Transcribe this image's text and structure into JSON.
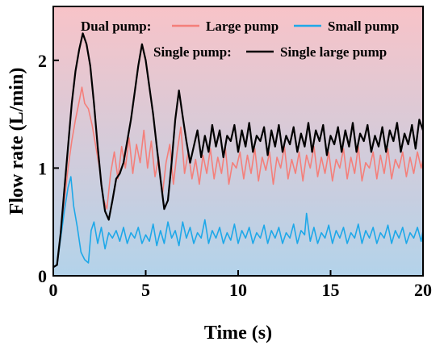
{
  "chart_data": {
    "type": "line",
    "title": "",
    "xlabel": "Time (s)",
    "ylabel": "Flow rate (L/min)",
    "xlim": [
      0,
      20
    ],
    "ylim": [
      0,
      2.5
    ],
    "xticks": [
      0,
      5,
      10,
      15,
      20
    ],
    "yticks": [
      0,
      1,
      2
    ],
    "grid": false,
    "legend_position": "top",
    "background": {
      "top_color": "#f8c3c8",
      "bottom_color": "#b3d3ea"
    },
    "legend": {
      "group1_label": "Dual pump:",
      "group2_label": "Single pump:"
    },
    "series": [
      {
        "name": "Large pump",
        "group": "Dual pump:",
        "color": "#f47f7a",
        "points": [
          [
            0,
            0.08
          ],
          [
            0.2,
            0.1
          ],
          [
            0.4,
            0.35
          ],
          [
            0.6,
            0.7
          ],
          [
            0.8,
            1.0
          ],
          [
            1.0,
            1.25
          ],
          [
            1.2,
            1.45
          ],
          [
            1.4,
            1.62
          ],
          [
            1.55,
            1.75
          ],
          [
            1.7,
            1.6
          ],
          [
            1.9,
            1.55
          ],
          [
            2.1,
            1.4
          ],
          [
            2.3,
            1.2
          ],
          [
            2.5,
            1.0
          ],
          [
            2.7,
            0.72
          ],
          [
            2.9,
            0.62
          ],
          [
            3.1,
            0.95
          ],
          [
            3.3,
            1.15
          ],
          [
            3.5,
            0.9
          ],
          [
            3.7,
            1.2
          ],
          [
            3.9,
            1.0
          ],
          [
            4.1,
            1.28
          ],
          [
            4.3,
            0.95
          ],
          [
            4.5,
            1.22
          ],
          [
            4.7,
            1.05
          ],
          [
            4.9,
            1.35
          ],
          [
            5.1,
            1.0
          ],
          [
            5.3,
            1.25
          ],
          [
            5.5,
            0.92
          ],
          [
            5.7,
            1.1
          ],
          [
            5.9,
            0.75
          ],
          [
            6.1,
            1.05
          ],
          [
            6.3,
            1.22
          ],
          [
            6.5,
            0.85
          ],
          [
            6.7,
            1.15
          ],
          [
            6.9,
            1.38
          ],
          [
            7.1,
            0.95
          ],
          [
            7.3,
            1.15
          ],
          [
            7.5,
            0.9
          ],
          [
            7.7,
            1.08
          ],
          [
            7.9,
            0.85
          ],
          [
            8.1,
            1.12
          ],
          [
            8.3,
            0.95
          ],
          [
            8.5,
            1.18
          ],
          [
            8.7,
            0.9
          ],
          [
            8.9,
            1.1
          ],
          [
            9.1,
            0.95
          ],
          [
            9.3,
            1.2
          ],
          [
            9.5,
            0.85
          ],
          [
            9.7,
            1.05
          ],
          [
            9.9,
            1.0
          ],
          [
            10.1,
            1.15
          ],
          [
            10.3,
            0.9
          ],
          [
            10.5,
            1.12
          ],
          [
            10.7,
            0.95
          ],
          [
            10.9,
            1.18
          ],
          [
            11.1,
            0.88
          ],
          [
            11.3,
            1.1
          ],
          [
            11.5,
            0.98
          ],
          [
            11.7,
            1.15
          ],
          [
            11.9,
            0.85
          ],
          [
            12.1,
            1.1
          ],
          [
            12.3,
            1.0
          ],
          [
            12.5,
            1.2
          ],
          [
            12.7,
            0.9
          ],
          [
            12.9,
            1.08
          ],
          [
            13.1,
            0.95
          ],
          [
            13.3,
            1.15
          ],
          [
            13.5,
            0.88
          ],
          [
            13.7,
            1.12
          ],
          [
            13.9,
            1.0
          ],
          [
            14.1,
            1.2
          ],
          [
            14.3,
            0.92
          ],
          [
            14.5,
            1.1
          ],
          [
            14.7,
            0.95
          ],
          [
            14.9,
            1.15
          ],
          [
            15.1,
            0.88
          ],
          [
            15.3,
            1.08
          ],
          [
            15.5,
            1.0
          ],
          [
            15.7,
            1.18
          ],
          [
            15.9,
            0.9
          ],
          [
            16.1,
            1.1
          ],
          [
            16.3,
            0.95
          ],
          [
            16.5,
            1.2
          ],
          [
            16.7,
            0.88
          ],
          [
            16.9,
            1.05
          ],
          [
            17.1,
            1.0
          ],
          [
            17.3,
            1.15
          ],
          [
            17.5,
            0.9
          ],
          [
            17.7,
            1.12
          ],
          [
            17.9,
            0.95
          ],
          [
            18.1,
            1.18
          ],
          [
            18.3,
            0.9
          ],
          [
            18.5,
            1.08
          ],
          [
            18.7,
            1.0
          ],
          [
            18.9,
            1.15
          ],
          [
            19.1,
            0.92
          ],
          [
            19.3,
            1.1
          ],
          [
            19.5,
            0.95
          ],
          [
            19.7,
            1.15
          ],
          [
            19.9,
            1.0
          ],
          [
            20.0,
            1.08
          ]
        ]
      },
      {
        "name": "Small pump",
        "group": "Dual pump:",
        "color": "#1ea8e8",
        "points": [
          [
            0,
            0.08
          ],
          [
            0.2,
            0.1
          ],
          [
            0.4,
            0.35
          ],
          [
            0.6,
            0.6
          ],
          [
            0.8,
            0.82
          ],
          [
            0.95,
            0.92
          ],
          [
            1.1,
            0.65
          ],
          [
            1.3,
            0.45
          ],
          [
            1.5,
            0.22
          ],
          [
            1.7,
            0.15
          ],
          [
            1.9,
            0.12
          ],
          [
            2.05,
            0.42
          ],
          [
            2.2,
            0.5
          ],
          [
            2.4,
            0.3
          ],
          [
            2.6,
            0.45
          ],
          [
            2.8,
            0.25
          ],
          [
            3.0,
            0.4
          ],
          [
            3.2,
            0.35
          ],
          [
            3.4,
            0.42
          ],
          [
            3.6,
            0.32
          ],
          [
            3.8,
            0.45
          ],
          [
            4.0,
            0.3
          ],
          [
            4.2,
            0.4
          ],
          [
            4.4,
            0.35
          ],
          [
            4.6,
            0.45
          ],
          [
            4.8,
            0.3
          ],
          [
            5.0,
            0.38
          ],
          [
            5.2,
            0.32
          ],
          [
            5.4,
            0.48
          ],
          [
            5.6,
            0.28
          ],
          [
            5.8,
            0.42
          ],
          [
            6.0,
            0.3
          ],
          [
            6.2,
            0.5
          ],
          [
            6.4,
            0.35
          ],
          [
            6.6,
            0.42
          ],
          [
            6.8,
            0.28
          ],
          [
            7.0,
            0.5
          ],
          [
            7.2,
            0.35
          ],
          [
            7.4,
            0.45
          ],
          [
            7.6,
            0.3
          ],
          [
            7.8,
            0.4
          ],
          [
            8.0,
            0.35
          ],
          [
            8.2,
            0.52
          ],
          [
            8.4,
            0.3
          ],
          [
            8.6,
            0.42
          ],
          [
            8.8,
            0.35
          ],
          [
            9.0,
            0.45
          ],
          [
            9.2,
            0.3
          ],
          [
            9.4,
            0.4
          ],
          [
            9.6,
            0.33
          ],
          [
            9.8,
            0.48
          ],
          [
            10.0,
            0.3
          ],
          [
            10.2,
            0.42
          ],
          [
            10.4,
            0.35
          ],
          [
            10.6,
            0.45
          ],
          [
            10.8,
            0.3
          ],
          [
            11.0,
            0.4
          ],
          [
            11.2,
            0.35
          ],
          [
            11.4,
            0.47
          ],
          [
            11.6,
            0.3
          ],
          [
            11.8,
            0.42
          ],
          [
            12.0,
            0.35
          ],
          [
            12.2,
            0.45
          ],
          [
            12.4,
            0.3
          ],
          [
            12.6,
            0.4
          ],
          [
            12.8,
            0.35
          ],
          [
            13.0,
            0.48
          ],
          [
            13.2,
            0.3
          ],
          [
            13.4,
            0.42
          ],
          [
            13.6,
            0.38
          ],
          [
            13.7,
            0.58
          ],
          [
            13.9,
            0.32
          ],
          [
            14.1,
            0.45
          ],
          [
            14.3,
            0.3
          ],
          [
            14.5,
            0.4
          ],
          [
            14.7,
            0.35
          ],
          [
            14.9,
            0.47
          ],
          [
            15.1,
            0.3
          ],
          [
            15.3,
            0.42
          ],
          [
            15.5,
            0.35
          ],
          [
            15.7,
            0.45
          ],
          [
            15.9,
            0.3
          ],
          [
            16.1,
            0.4
          ],
          [
            16.3,
            0.35
          ],
          [
            16.5,
            0.48
          ],
          [
            16.7,
            0.3
          ],
          [
            16.9,
            0.42
          ],
          [
            17.1,
            0.35
          ],
          [
            17.3,
            0.45
          ],
          [
            17.5,
            0.3
          ],
          [
            17.7,
            0.4
          ],
          [
            17.9,
            0.35
          ],
          [
            18.1,
            0.47
          ],
          [
            18.3,
            0.3
          ],
          [
            18.5,
            0.42
          ],
          [
            18.7,
            0.35
          ],
          [
            18.9,
            0.45
          ],
          [
            19.1,
            0.3
          ],
          [
            19.3,
            0.4
          ],
          [
            19.5,
            0.35
          ],
          [
            19.7,
            0.45
          ],
          [
            19.9,
            0.32
          ],
          [
            20.0,
            0.42
          ]
        ]
      },
      {
        "name": "Single large pump",
        "group": "Single pump:",
        "color": "#000000",
        "points": [
          [
            0,
            0.08
          ],
          [
            0.2,
            0.1
          ],
          [
            0.4,
            0.4
          ],
          [
            0.6,
            0.8
          ],
          [
            0.8,
            1.2
          ],
          [
            1.0,
            1.6
          ],
          [
            1.2,
            1.9
          ],
          [
            1.4,
            2.1
          ],
          [
            1.6,
            2.25
          ],
          [
            1.8,
            2.15
          ],
          [
            2.0,
            1.95
          ],
          [
            2.2,
            1.6
          ],
          [
            2.4,
            1.2
          ],
          [
            2.6,
            0.85
          ],
          [
            2.8,
            0.6
          ],
          [
            3.0,
            0.52
          ],
          [
            3.2,
            0.7
          ],
          [
            3.4,
            0.9
          ],
          [
            3.6,
            0.95
          ],
          [
            3.8,
            1.05
          ],
          [
            4.0,
            1.25
          ],
          [
            4.2,
            1.45
          ],
          [
            4.4,
            1.7
          ],
          [
            4.6,
            1.95
          ],
          [
            4.8,
            2.15
          ],
          [
            5.0,
            2.0
          ],
          [
            5.2,
            1.75
          ],
          [
            5.4,
            1.5
          ],
          [
            5.6,
            1.2
          ],
          [
            5.8,
            0.9
          ],
          [
            6.0,
            0.62
          ],
          [
            6.2,
            0.7
          ],
          [
            6.4,
            1.05
          ],
          [
            6.6,
            1.45
          ],
          [
            6.8,
            1.72
          ],
          [
            7.0,
            1.48
          ],
          [
            7.2,
            1.25
          ],
          [
            7.4,
            1.05
          ],
          [
            7.6,
            1.2
          ],
          [
            7.8,
            1.35
          ],
          [
            8.0,
            1.1
          ],
          [
            8.2,
            1.3
          ],
          [
            8.4,
            1.15
          ],
          [
            8.6,
            1.4
          ],
          [
            8.8,
            1.2
          ],
          [
            9.0,
            1.35
          ],
          [
            9.2,
            1.1
          ],
          [
            9.4,
            1.3
          ],
          [
            9.6,
            1.25
          ],
          [
            9.8,
            1.4
          ],
          [
            10.0,
            1.15
          ],
          [
            10.2,
            1.35
          ],
          [
            10.4,
            1.2
          ],
          [
            10.6,
            1.42
          ],
          [
            10.8,
            1.15
          ],
          [
            11.0,
            1.3
          ],
          [
            11.2,
            1.25
          ],
          [
            11.4,
            1.38
          ],
          [
            11.6,
            1.12
          ],
          [
            11.8,
            1.35
          ],
          [
            12.0,
            1.2
          ],
          [
            12.2,
            1.4
          ],
          [
            12.4,
            1.15
          ],
          [
            12.6,
            1.3
          ],
          [
            12.8,
            1.22
          ],
          [
            13.0,
            1.38
          ],
          [
            13.2,
            1.15
          ],
          [
            13.4,
            1.32
          ],
          [
            13.6,
            1.2
          ],
          [
            13.8,
            1.42
          ],
          [
            14.0,
            1.15
          ],
          [
            14.2,
            1.35
          ],
          [
            14.4,
            1.25
          ],
          [
            14.6,
            1.4
          ],
          [
            14.8,
            1.12
          ],
          [
            15.0,
            1.3
          ],
          [
            15.2,
            1.22
          ],
          [
            15.4,
            1.38
          ],
          [
            15.6,
            1.15
          ],
          [
            15.8,
            1.35
          ],
          [
            16.0,
            1.2
          ],
          [
            16.2,
            1.42
          ],
          [
            16.4,
            1.15
          ],
          [
            16.6,
            1.32
          ],
          [
            16.8,
            1.25
          ],
          [
            17.0,
            1.4
          ],
          [
            17.2,
            1.15
          ],
          [
            17.4,
            1.3
          ],
          [
            17.6,
            1.2
          ],
          [
            17.8,
            1.38
          ],
          [
            18.0,
            1.15
          ],
          [
            18.2,
            1.35
          ],
          [
            18.4,
            1.25
          ],
          [
            18.6,
            1.42
          ],
          [
            18.8,
            1.15
          ],
          [
            19.0,
            1.32
          ],
          [
            19.2,
            1.22
          ],
          [
            19.4,
            1.4
          ],
          [
            19.6,
            1.18
          ],
          [
            19.8,
            1.45
          ],
          [
            20.0,
            1.35
          ]
        ]
      }
    ]
  }
}
